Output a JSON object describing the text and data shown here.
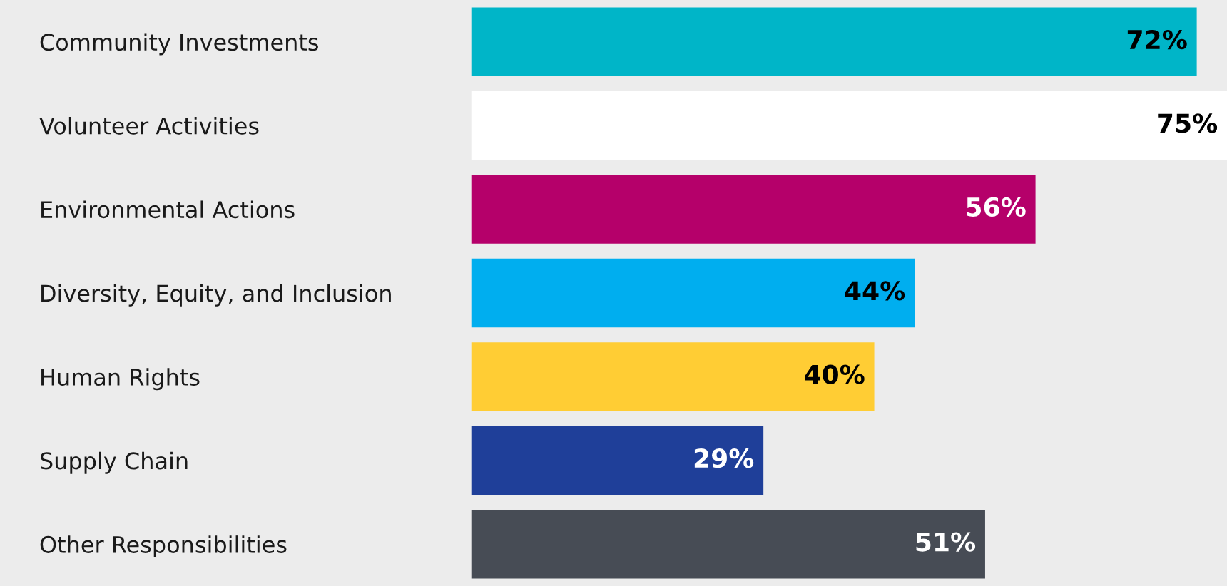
{
  "chart_data": {
    "type": "bar",
    "orientation": "horizontal",
    "categories": [
      "Community Investments",
      "Volunteer Activities",
      "Environmental Actions",
      "Diversity, Equity, and Inclusion",
      "Human Rights",
      "Supply Chain",
      "Other Responsibilities"
    ],
    "values": [
      72,
      75,
      56,
      44,
      40,
      29,
      51
    ],
    "value_labels": [
      "72%",
      "75%",
      "56%",
      "44%",
      "40%",
      "29%",
      "51%"
    ],
    "colors": [
      "#00b5c8",
      "#ffffff",
      "#b5006a",
      "#00aeef",
      "#ffcd34",
      "#1f3f99",
      "#474c55"
    ],
    "grid": false,
    "legend": false
  }
}
